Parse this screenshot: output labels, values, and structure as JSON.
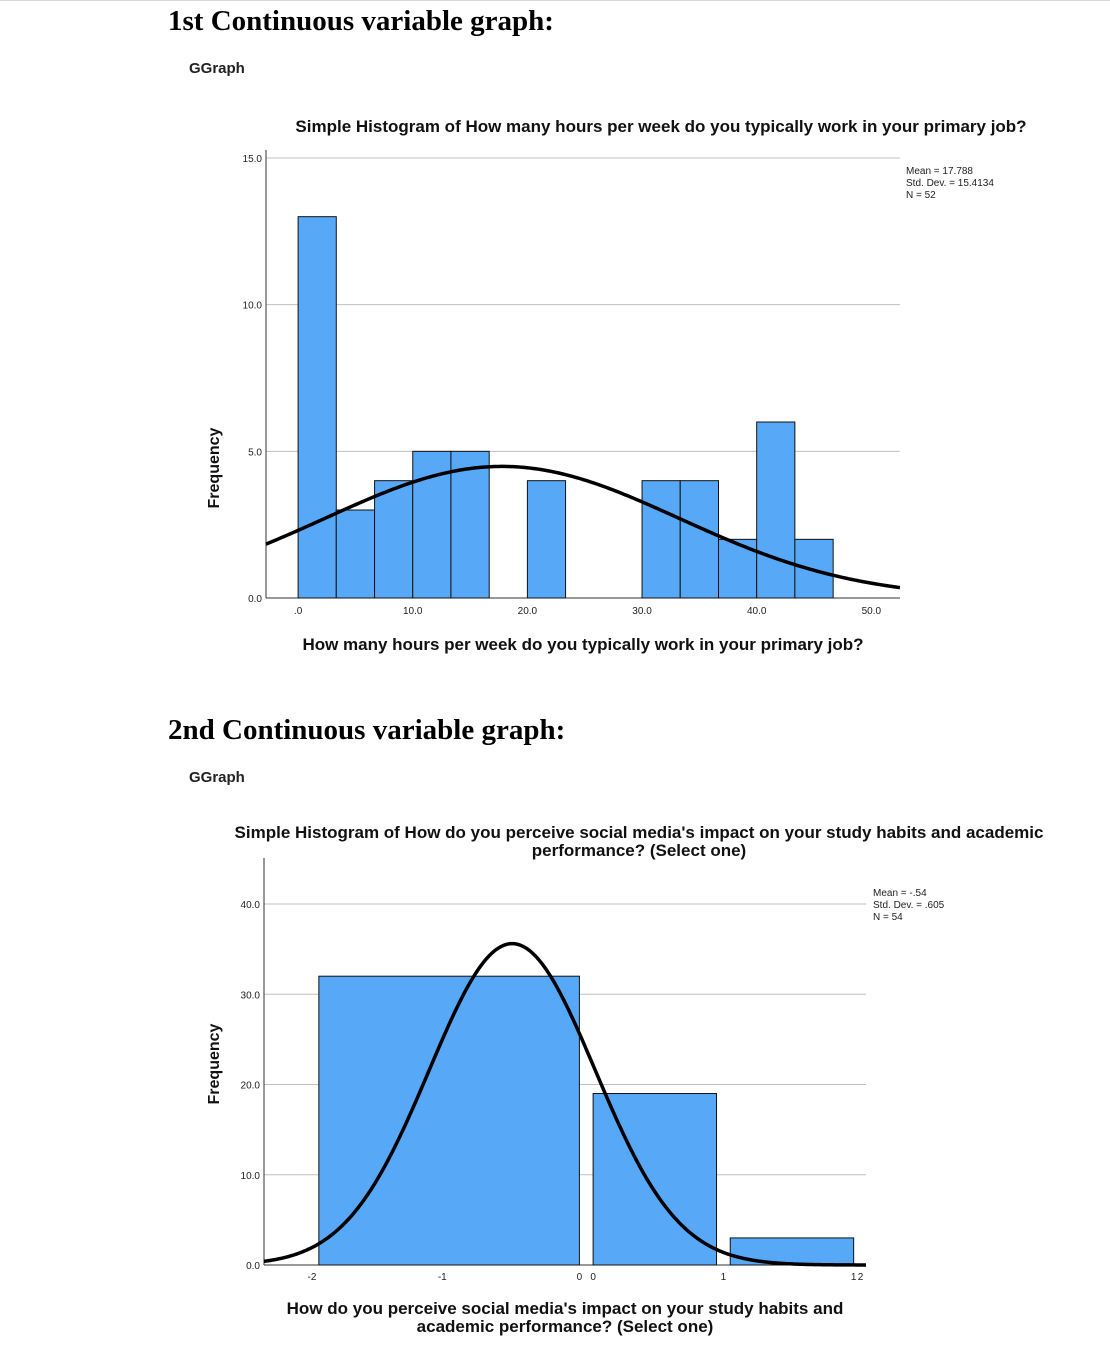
{
  "headings": {
    "first": "1st Continuous variable graph:",
    "second": "2nd Continuous variable graph:"
  },
  "ggraph_label": "GGraph",
  "chart_data": [
    {
      "type": "bar",
      "subtype": "histogram",
      "title": "Simple Histogram of How many hours per week do you typically work in your primary job?",
      "xlabel": "How many hours per week do you typically work in your primary job?",
      "ylabel": "Frequency",
      "x_ticks": [
        ".0",
        "10.0",
        "20.0",
        "30.0",
        "40.0",
        "50.0"
      ],
      "y_ticks": [
        "0.0",
        "5.0",
        "10.0",
        "15.0"
      ],
      "xlim": [
        -2.8,
        52.5
      ],
      "ylim": [
        0,
        15
      ],
      "bins": [
        {
          "x0": 0,
          "x1": 3.33,
          "count": 13
        },
        {
          "x0": 3.33,
          "x1": 6.67,
          "count": 3
        },
        {
          "x0": 6.67,
          "x1": 10,
          "count": 4
        },
        {
          "x0": 10,
          "x1": 13.33,
          "count": 5
        },
        {
          "x0": 13.33,
          "x1": 16.67,
          "count": 5
        },
        {
          "x0": 16.67,
          "x1": 20,
          "count": 0
        },
        {
          "x0": 20,
          "x1": 23.33,
          "count": 4
        },
        {
          "x0": 23.33,
          "x1": 26.67,
          "count": 0
        },
        {
          "x0": 26.67,
          "x1": 30,
          "count": 0
        },
        {
          "x0": 30,
          "x1": 33.33,
          "count": 4
        },
        {
          "x0": 33.33,
          "x1": 36.67,
          "count": 4
        },
        {
          "x0": 36.67,
          "x1": 40,
          "count": 2
        },
        {
          "x0": 40,
          "x1": 43.33,
          "count": 6
        },
        {
          "x0": 43.33,
          "x1": 46.67,
          "count": 2
        }
      ],
      "stats": [
        "Mean = 17.788",
        "Std. Dev. = 15.4134",
        "N = 52"
      ],
      "normal_curve": {
        "mean": 17.788,
        "sd": 15.4134,
        "n": 52,
        "bin_width": 3.333
      },
      "grid": true,
      "legend_position": "top-right"
    },
    {
      "type": "bar",
      "subtype": "histogram",
      "title": "Simple Histogram of How do you perceive social media's impact on your study habits and academic performance? (Select one)",
      "title_lines": [
        "Simple Histogram of How do you perceive social media's impact on your study habits and academic",
        "performance? (Select one)"
      ],
      "xlabel": "How do you perceive social media's impact on your study habits and academic performance? (Select one)",
      "xlabel_lines": [
        "How do you perceive social media's impact on your study habits and",
        "academic performance? (Select one)"
      ],
      "ylabel": "Frequency",
      "x_ticks": [
        "-2",
        "-1",
        "0",
        "0",
        "1",
        "1",
        "2"
      ],
      "y_ticks": [
        "0.0",
        "10.0",
        "20.0",
        "30.0",
        "40.0"
      ],
      "xlim": [
        -2.35,
        2.04
      ],
      "ylim": [
        0,
        40
      ],
      "bins": [
        {
          "x0": -1.95,
          "x1": -0.05,
          "count": 32
        },
        {
          "x0": 0.05,
          "x1": 0.95,
          "count": 19
        },
        {
          "x0": 1.05,
          "x1": 1.95,
          "count": 3
        }
      ],
      "stats": [
        "Mean = -.54",
        "Std. Dev. = .605",
        "N = 54"
      ],
      "normal_curve": {
        "mean": -0.54,
        "sd": 0.605,
        "n": 54,
        "bin_width": 1
      },
      "grid": true,
      "legend_position": "top-right"
    }
  ]
}
